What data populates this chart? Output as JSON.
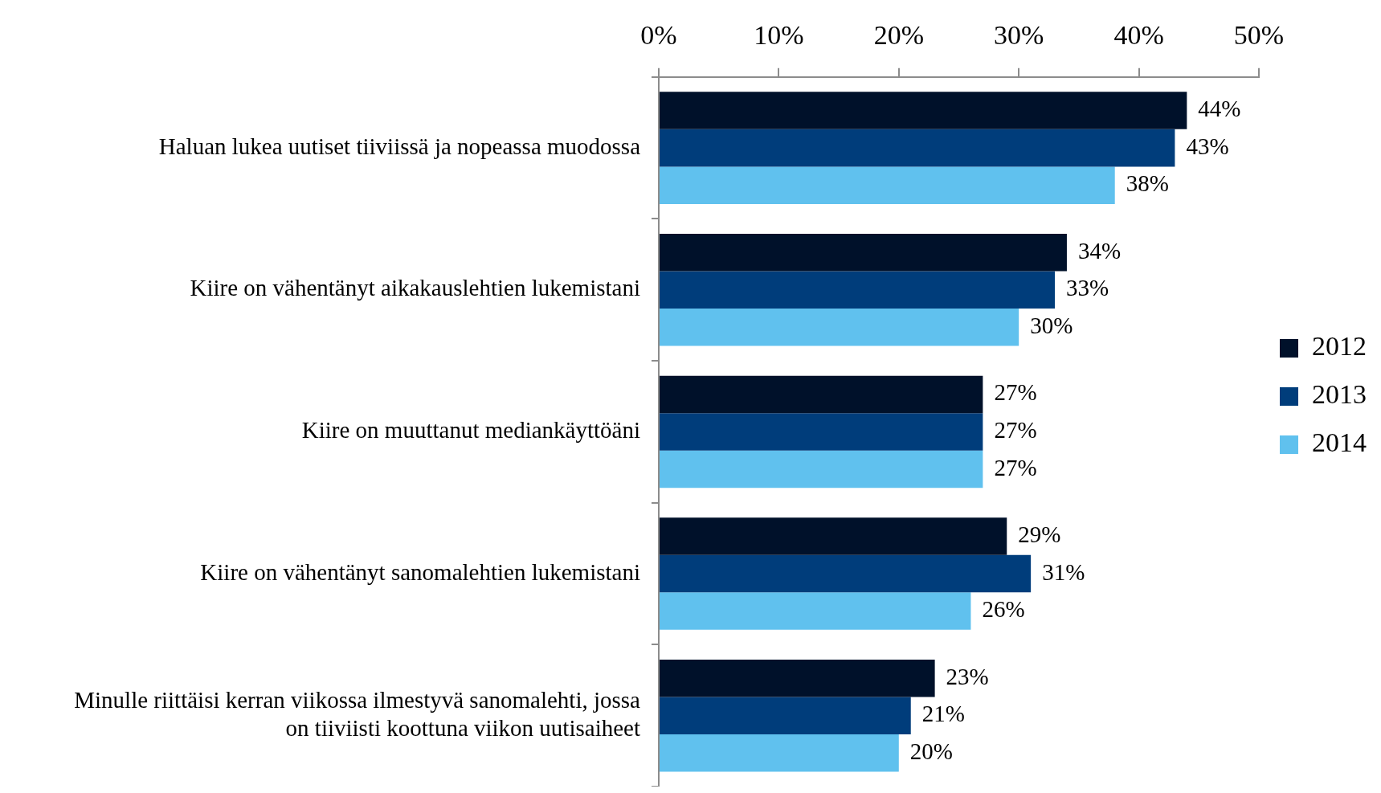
{
  "chart_data": {
    "type": "bar",
    "orientation": "horizontal",
    "categories": [
      "Haluan lukea uutiset tiiviissä ja nopeassa muodossa",
      "Kiire on vähentänyt aikakauslehtien lukemistani",
      "Kiire on muuttanut mediankäyttöäni",
      "Kiire on vähentänyt sanomalehtien lukemistani",
      "Minulle riittäisi kerran viikossa ilmestyvä sanomalehti, jossa on tiiviisti koottuna viikon uutisaiheet"
    ],
    "series": [
      {
        "name": "2012",
        "color": "#00112a",
        "values": [
          44,
          34,
          27,
          29,
          23
        ],
        "value_labels": [
          "44%",
          "34%",
          "27%",
          "29%",
          "23%"
        ]
      },
      {
        "name": "2013",
        "color": "#003d7b",
        "values": [
          43,
          33,
          27,
          31,
          21
        ],
        "value_labels": [
          "43%",
          "33%",
          "27%",
          "31%",
          "21%"
        ]
      },
      {
        "name": "2014",
        "color": "#60c1ee",
        "values": [
          38,
          30,
          27,
          26,
          20
        ],
        "value_labels": [
          "38%",
          "30%",
          "27%",
          "26%",
          "20%"
        ]
      }
    ],
    "xlim": [
      0,
      50
    ],
    "xticks": [
      {
        "value": 0,
        "label": "0%"
      },
      {
        "value": 10,
        "label": "10%"
      },
      {
        "value": 20,
        "label": "20%"
      },
      {
        "value": 30,
        "label": "30%"
      },
      {
        "value": 40,
        "label": "40%"
      },
      {
        "value": 50,
        "label": "50%"
      }
    ],
    "legend": "right"
  }
}
